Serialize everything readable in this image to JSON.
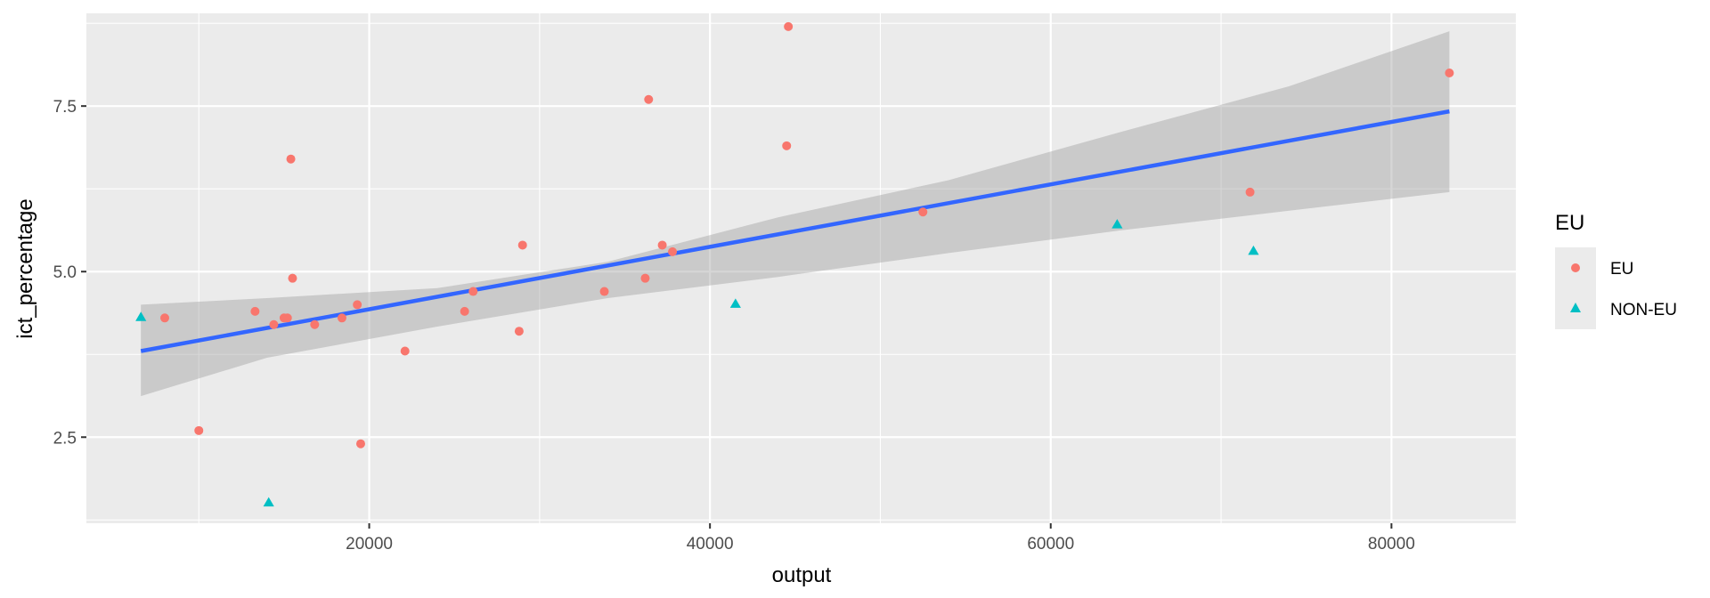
{
  "chart_data": {
    "type": "scatter",
    "xlabel": "output",
    "ylabel": "ict_percentage",
    "xlim": [
      3400,
      87300
    ],
    "ylim": [
      1.2,
      8.9
    ],
    "x_ticks": [
      20000,
      40000,
      60000,
      80000
    ],
    "x_tick_labels": [
      "20000",
      "40000",
      "60000",
      "80000"
    ],
    "y_ticks": [
      2.5,
      5.0,
      7.5
    ],
    "y_tick_labels": [
      "2.5",
      "5.0",
      "7.5"
    ],
    "grid": true,
    "legend": {
      "title": "EU",
      "placement": "right",
      "entries": [
        {
          "label": "EU",
          "color": "#F8766D",
          "shape": "circle"
        },
        {
          "label": "NON-EU",
          "color": "#00BFC4",
          "shape": "triangle"
        }
      ]
    },
    "series": [
      {
        "name": "EU",
        "color": "#F8766D",
        "shape": "circle",
        "points": [
          [
            8000,
            4.3
          ],
          [
            10000,
            2.6
          ],
          [
            13300,
            4.4
          ],
          [
            14400,
            4.2
          ],
          [
            15000,
            4.3
          ],
          [
            15200,
            4.3
          ],
          [
            15400,
            6.7
          ],
          [
            15500,
            4.9
          ],
          [
            16800,
            4.2
          ],
          [
            18400,
            4.3
          ],
          [
            19300,
            4.5
          ],
          [
            19500,
            2.4
          ],
          [
            22100,
            3.8
          ],
          [
            25600,
            4.4
          ],
          [
            26100,
            4.7
          ],
          [
            28800,
            4.1
          ],
          [
            29000,
            5.4
          ],
          [
            33800,
            4.7
          ],
          [
            36200,
            4.9
          ],
          [
            36400,
            7.6
          ],
          [
            37200,
            5.4
          ],
          [
            37800,
            5.3
          ],
          [
            44500,
            6.9
          ],
          [
            44600,
            8.7
          ],
          [
            52500,
            5.9
          ],
          [
            71700,
            6.2
          ],
          [
            83400,
            8.0
          ]
        ]
      },
      {
        "name": "NON-EU",
        "color": "#00BFC4",
        "shape": "triangle",
        "points": [
          [
            6600,
            4.3
          ],
          [
            14100,
            1.5
          ],
          [
            41500,
            4.5
          ],
          [
            63900,
            5.7
          ],
          [
            71900,
            5.3
          ]
        ]
      }
    ],
    "trend_line": {
      "method": "linear",
      "color": "#3366FF",
      "x": [
        6600,
        83400
      ],
      "y": [
        3.8,
        7.42
      ]
    },
    "confidence_band": {
      "color": "#999999",
      "x": [
        6600,
        14000,
        24000,
        34000,
        44000,
        54000,
        64000,
        74000,
        83400
      ],
      "lower": [
        3.12,
        3.7,
        4.17,
        4.6,
        4.92,
        5.28,
        5.62,
        5.92,
        6.2
      ],
      "upper": [
        4.5,
        4.6,
        4.75,
        5.15,
        5.82,
        6.38,
        7.1,
        7.8,
        8.63
      ]
    }
  }
}
